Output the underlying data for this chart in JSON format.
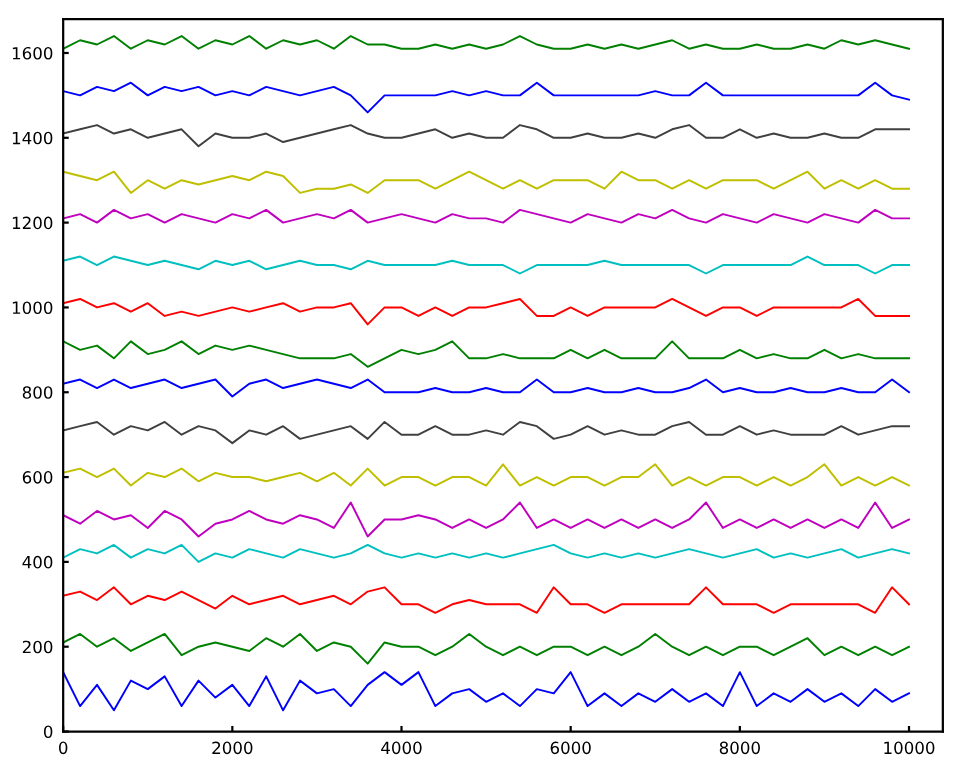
{
  "chart_data": {
    "type": "line",
    "x": [
      0,
      200,
      400,
      600,
      800,
      1000,
      1200,
      1400,
      1600,
      1800,
      2000,
      2200,
      2400,
      2600,
      2800,
      3000,
      3200,
      3400,
      3600,
      3800,
      4000,
      4200,
      4400,
      4600,
      4800,
      5000,
      5200,
      5400,
      5600,
      5800,
      6000,
      6200,
      6400,
      6600,
      6800,
      7000,
      7200,
      7400,
      7600,
      7800,
      8000,
      8200,
      8400,
      8600,
      8800,
      9000,
      9200,
      9400,
      9600,
      9800,
      10000
    ],
    "series": [
      {
        "color": "#0000ff",
        "values": [
          140,
          60,
          110,
          50,
          120,
          100,
          130,
          60,
          120,
          80,
          110,
          60,
          130,
          50,
          120,
          90,
          100,
          60,
          110,
          140,
          110,
          140,
          60,
          90,
          100,
          70,
          90,
          60,
          100,
          90,
          140,
          60,
          90,
          60,
          90,
          70,
          100,
          70,
          90,
          60,
          140,
          60,
          90,
          70,
          100,
          70,
          90,
          60,
          100,
          70,
          90
        ]
      },
      {
        "color": "#008000",
        "values": [
          210,
          230,
          200,
          220,
          190,
          210,
          230,
          180,
          200,
          210,
          200,
          190,
          220,
          200,
          230,
          190,
          210,
          200,
          160,
          210,
          200,
          200,
          180,
          200,
          230,
          200,
          180,
          200,
          180,
          200,
          200,
          180,
          200,
          180,
          200,
          230,
          200,
          180,
          200,
          180,
          200,
          200,
          180,
          200,
          220,
          180,
          200,
          180,
          200,
          180,
          200
        ]
      },
      {
        "color": "#ff0000",
        "values": [
          320,
          330,
          310,
          340,
          300,
          320,
          310,
          330,
          310,
          290,
          320,
          300,
          310,
          320,
          300,
          310,
          320,
          300,
          330,
          340,
          300,
          300,
          280,
          300,
          310,
          300,
          300,
          300,
          280,
          340,
          300,
          300,
          280,
          300,
          300,
          300,
          300,
          300,
          340,
          300,
          300,
          300,
          280,
          300,
          300,
          300,
          300,
          300,
          280,
          340,
          300
        ]
      },
      {
        "color": "#00bfbf",
        "values": [
          410,
          430,
          420,
          440,
          410,
          430,
          420,
          440,
          400,
          420,
          410,
          430,
          420,
          410,
          430,
          420,
          410,
          420,
          440,
          420,
          410,
          420,
          410,
          420,
          410,
          420,
          410,
          420,
          430,
          440,
          420,
          410,
          420,
          410,
          420,
          410,
          420,
          430,
          420,
          410,
          420,
          430,
          410,
          420,
          410,
          420,
          430,
          410,
          420,
          430,
          420
        ]
      },
      {
        "color": "#bf00bf",
        "values": [
          510,
          490,
          520,
          500,
          510,
          480,
          520,
          500,
          460,
          490,
          500,
          520,
          500,
          490,
          510,
          500,
          480,
          540,
          460,
          500,
          500,
          510,
          500,
          480,
          500,
          480,
          500,
          540,
          480,
          500,
          480,
          500,
          480,
          500,
          480,
          500,
          480,
          500,
          540,
          480,
          500,
          480,
          500,
          480,
          500,
          480,
          500,
          480,
          540,
          480,
          500
        ]
      },
      {
        "color": "#bfbf00",
        "values": [
          610,
          620,
          600,
          620,
          580,
          610,
          600,
          620,
          590,
          610,
          600,
          600,
          590,
          600,
          610,
          590,
          610,
          580,
          620,
          580,
          600,
          600,
          580,
          600,
          600,
          580,
          630,
          580,
          600,
          580,
          600,
          600,
          580,
          600,
          600,
          630,
          580,
          600,
          580,
          600,
          600,
          580,
          600,
          580,
          600,
          630,
          580,
          600,
          580,
          600,
          580
        ]
      },
      {
        "color": "#404040",
        "values": [
          710,
          720,
          730,
          700,
          720,
          710,
          730,
          700,
          720,
          710,
          680,
          710,
          700,
          720,
          690,
          700,
          710,
          720,
          690,
          730,
          700,
          700,
          720,
          700,
          700,
          710,
          700,
          730,
          720,
          690,
          700,
          720,
          700,
          710,
          700,
          700,
          720,
          730,
          700,
          700,
          720,
          700,
          710,
          700,
          700,
          700,
          720,
          700,
          710,
          720,
          720
        ]
      },
      {
        "color": "#0000ff",
        "values": [
          820,
          830,
          810,
          830,
          810,
          820,
          830,
          810,
          820,
          830,
          790,
          820,
          830,
          810,
          820,
          830,
          820,
          810,
          830,
          800,
          800,
          800,
          810,
          800,
          800,
          810,
          800,
          800,
          830,
          800,
          800,
          810,
          800,
          800,
          810,
          800,
          800,
          810,
          830,
          800,
          810,
          800,
          800,
          810,
          800,
          800,
          810,
          800,
          800,
          830,
          800
        ]
      },
      {
        "color": "#008000",
        "values": [
          920,
          900,
          910,
          880,
          920,
          890,
          900,
          920,
          890,
          910,
          900,
          910,
          900,
          890,
          880,
          880,
          880,
          890,
          860,
          880,
          900,
          890,
          900,
          920,
          880,
          880,
          890,
          880,
          880,
          880,
          900,
          880,
          900,
          880,
          880,
          880,
          920,
          880,
          880,
          880,
          900,
          880,
          890,
          880,
          880,
          900,
          880,
          890,
          880,
          880,
          880
        ]
      },
      {
        "color": "#ff0000",
        "values": [
          1010,
          1020,
          1000,
          1010,
          990,
          1010,
          980,
          990,
          980,
          990,
          1000,
          990,
          1000,
          1010,
          990,
          1000,
          1000,
          1010,
          960,
          1000,
          1000,
          980,
          1000,
          980,
          1000,
          1000,
          1010,
          1020,
          980,
          980,
          1000,
          980,
          1000,
          1000,
          1000,
          1000,
          1020,
          1000,
          980,
          1000,
          1000,
          980,
          1000,
          1000,
          1000,
          1000,
          1000,
          1020,
          980,
          980,
          980
        ]
      },
      {
        "color": "#00bfbf",
        "values": [
          1110,
          1120,
          1100,
          1120,
          1110,
          1100,
          1110,
          1100,
          1090,
          1110,
          1100,
          1110,
          1090,
          1100,
          1110,
          1100,
          1100,
          1090,
          1110,
          1100,
          1100,
          1100,
          1100,
          1110,
          1100,
          1100,
          1100,
          1080,
          1100,
          1100,
          1100,
          1100,
          1110,
          1100,
          1100,
          1100,
          1100,
          1100,
          1080,
          1100,
          1100,
          1100,
          1100,
          1100,
          1120,
          1100,
          1100,
          1100,
          1080,
          1100,
          1100
        ]
      },
      {
        "color": "#bf00bf",
        "values": [
          1210,
          1220,
          1200,
          1230,
          1210,
          1220,
          1200,
          1220,
          1210,
          1200,
          1220,
          1210,
          1230,
          1200,
          1210,
          1220,
          1210,
          1230,
          1200,
          1210,
          1220,
          1210,
          1200,
          1220,
          1210,
          1210,
          1200,
          1230,
          1220,
          1210,
          1200,
          1220,
          1210,
          1200,
          1220,
          1210,
          1230,
          1210,
          1200,
          1220,
          1210,
          1200,
          1220,
          1210,
          1200,
          1220,
          1210,
          1200,
          1230,
          1210,
          1210
        ]
      },
      {
        "color": "#bfbf00",
        "values": [
          1320,
          1310,
          1300,
          1320,
          1270,
          1300,
          1280,
          1300,
          1290,
          1300,
          1310,
          1300,
          1320,
          1310,
          1270,
          1280,
          1280,
          1290,
          1270,
          1300,
          1300,
          1300,
          1280,
          1300,
          1320,
          1300,
          1280,
          1300,
          1280,
          1300,
          1300,
          1300,
          1280,
          1320,
          1300,
          1300,
          1280,
          1300,
          1280,
          1300,
          1300,
          1300,
          1280,
          1300,
          1320,
          1280,
          1300,
          1280,
          1300,
          1280,
          1280
        ]
      },
      {
        "color": "#404040",
        "values": [
          1410,
          1420,
          1430,
          1410,
          1420,
          1400,
          1410,
          1420,
          1380,
          1410,
          1400,
          1400,
          1410,
          1390,
          1400,
          1410,
          1420,
          1430,
          1410,
          1400,
          1400,
          1410,
          1420,
          1400,
          1410,
          1400,
          1400,
          1430,
          1420,
          1400,
          1400,
          1410,
          1400,
          1400,
          1410,
          1400,
          1420,
          1430,
          1400,
          1400,
          1420,
          1400,
          1410,
          1400,
          1400,
          1410,
          1400,
          1400,
          1420,
          1420,
          1420
        ]
      },
      {
        "color": "#0000ff",
        "values": [
          1510,
          1500,
          1520,
          1510,
          1530,
          1500,
          1520,
          1510,
          1520,
          1500,
          1510,
          1500,
          1520,
          1510,
          1500,
          1510,
          1520,
          1500,
          1460,
          1500,
          1500,
          1500,
          1500,
          1510,
          1500,
          1510,
          1500,
          1500,
          1530,
          1500,
          1500,
          1500,
          1500,
          1500,
          1500,
          1510,
          1500,
          1500,
          1530,
          1500,
          1500,
          1500,
          1500,
          1500,
          1500,
          1500,
          1500,
          1500,
          1530,
          1500,
          1490
        ]
      },
      {
        "color": "#008000",
        "values": [
          1610,
          1630,
          1620,
          1640,
          1610,
          1630,
          1620,
          1640,
          1610,
          1630,
          1620,
          1640,
          1610,
          1630,
          1620,
          1630,
          1610,
          1640,
          1620,
          1620,
          1610,
          1610,
          1620,
          1610,
          1620,
          1610,
          1620,
          1640,
          1620,
          1610,
          1610,
          1620,
          1610,
          1620,
          1610,
          1620,
          1630,
          1610,
          1620,
          1610,
          1610,
          1620,
          1610,
          1610,
          1620,
          1610,
          1630,
          1620,
          1630,
          1620,
          1610
        ]
      }
    ],
    "xlim": [
      0,
      10400
    ],
    "ylim": [
      0,
      1680
    ],
    "xticks": [
      0,
      2000,
      4000,
      6000,
      8000,
      10000
    ],
    "yticks": [
      0,
      200,
      400,
      600,
      800,
      1000,
      1200,
      1400,
      1600
    ],
    "grid": false
  }
}
